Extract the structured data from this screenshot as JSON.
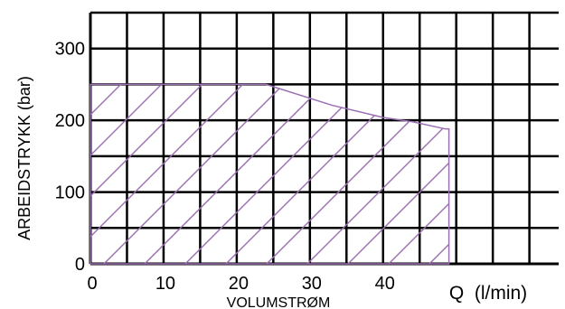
{
  "chart_data": {
    "type": "area",
    "xlabel": "VOLUMSTRØM",
    "x_unit_label": "Q  (l/min)",
    "ylabel": "ARBEIDSTRYKK  (bar)",
    "xlim": [
      0,
      64
    ],
    "ylim": [
      0,
      350
    ],
    "x_grid_step": 5,
    "y_grid_step": 50,
    "x_ticks": [
      {
        "value": 0,
        "label": "0"
      },
      {
        "value": 10,
        "label": "10"
      },
      {
        "value": 20,
        "label": "20"
      },
      {
        "value": 30,
        "label": "30"
      },
      {
        "value": 40,
        "label": "40"
      }
    ],
    "y_ticks": [
      {
        "value": 0,
        "label": "0"
      },
      {
        "value": 100,
        "label": "100"
      },
      {
        "value": 200,
        "label": "200"
      },
      {
        "value": 300,
        "label": "300"
      }
    ],
    "series": [
      {
        "x": [
          0,
          24,
          33,
          40,
          44,
          48.5,
          49
        ],
        "y": [
          250,
          250,
          221,
          204,
          198,
          188,
          188
        ]
      }
    ],
    "grid": true,
    "fill_style": "hatched",
    "colors": {
      "area": "#9b6fb3",
      "grid": "#000000",
      "text": "#000000"
    }
  }
}
